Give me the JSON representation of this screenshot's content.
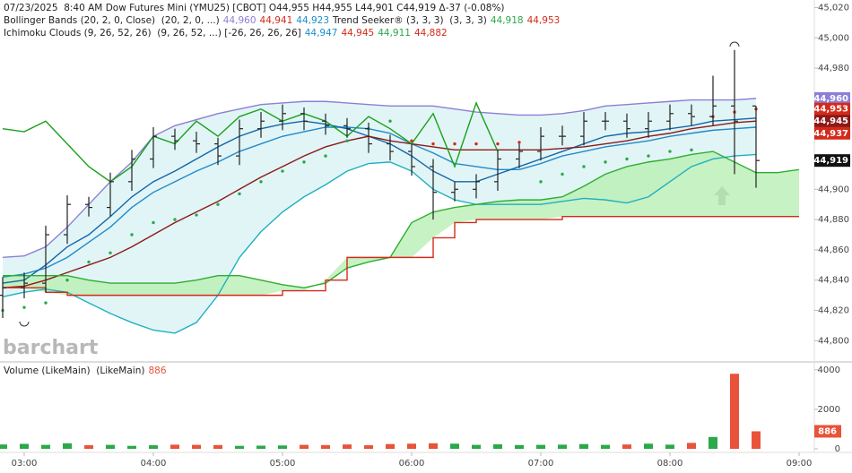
{
  "chart_data": [
    {
      "type": "ohlc",
      "categories": [
        null,
        "03:00",
        null,
        null,
        null,
        null,
        null,
        "04:00",
        null,
        null,
        null,
        null,
        null,
        "05:00",
        null,
        null,
        null,
        null,
        null,
        "06:00",
        null,
        null,
        null,
        null,
        null,
        "07:00",
        null,
        null,
        null,
        null,
        null,
        "08:00",
        null,
        null,
        null,
        null,
        null,
        "09:00"
      ],
      "open": [
        44830,
        44835,
        44838,
        44870,
        44890,
        44888,
        44905,
        44920,
        44935,
        44932,
        44930,
        44922,
        44940,
        44945,
        44950,
        44945,
        44942,
        44940,
        44930,
        44925,
        44915,
        44898,
        44900,
        44905,
        44920,
        44925,
        44935,
        44935,
        44945,
        44945,
        44940,
        44945,
        44950,
        44948,
        44955,
        44955,
        null,
        null
      ],
      "high": [
        44842,
        44845,
        44876,
        44896,
        44895,
        44911,
        44926,
        44941,
        44940,
        44938,
        44934,
        44946,
        44951,
        44956,
        44954,
        44950,
        44947,
        44944,
        44936,
        44930,
        44920,
        44905,
        44910,
        44926,
        44930,
        44941,
        44942,
        44951,
        44951,
        44950,
        44951,
        44956,
        44956,
        44975,
        44992,
        44955,
        null,
        null
      ],
      "low": [
        44815,
        44828,
        44832,
        44864,
        44882,
        44882,
        44899,
        44914,
        44926,
        44924,
        44916,
        44916,
        44934,
        44939,
        44939,
        44936,
        44934,
        44924,
        44919,
        44909,
        44880,
        44892,
        44894,
        44899,
        44914,
        44919,
        44929,
        44929,
        44939,
        44934,
        44934,
        44939,
        44942,
        44942,
        44910,
        44901,
        null,
        null
      ],
      "close": [
        44835,
        44838,
        44870,
        44890,
        44888,
        44905,
        44920,
        44935,
        44932,
        44930,
        44922,
        44940,
        44945,
        44950,
        44945,
        44942,
        44940,
        44930,
        44925,
        44915,
        44898,
        44900,
        44905,
        44920,
        44925,
        44935,
        44935,
        44945,
        44945,
        44940,
        44945,
        44950,
        44948,
        44955,
        44945,
        44919,
        null,
        null
      ],
      "color": "#222222",
      "series": [
        {
          "style": "line",
          "color": "#8c7fd6",
          "values": [
            44855,
            44856,
            44862,
            44875,
            44890,
            44905,
            44918,
            44935,
            44942,
            44946,
            44950,
            44953,
            44956,
            44957,
            44958,
            44958,
            44957,
            44956,
            44955,
            44955,
            44955,
            44953,
            44951,
            44950,
            44949,
            44949,
            44950,
            44952,
            44955,
            44956,
            44957,
            44958,
            44959,
            44959,
            44959,
            44960,
            null,
            null
          ]
        },
        {
          "style": "line",
          "color": "#2389c9",
          "values": [
            44842,
            44844,
            44848,
            44855,
            44865,
            44875,
            44888,
            44898,
            44905,
            44912,
            44918,
            44925,
            44930,
            44935,
            44938,
            44941,
            44941,
            44940,
            44937,
            44930,
            44924,
            44917,
            44915,
            44913,
            44913,
            44917,
            44922,
            44925,
            44928,
            44930,
            44932,
            44935,
            44937,
            44939,
            44940,
            44941,
            null,
            null
          ]
        },
        {
          "style": "line",
          "color": "#1fb0c0",
          "values": [
            44829,
            44832,
            44834,
            44832,
            44825,
            44818,
            44812,
            44807,
            44805,
            44812,
            44830,
            44855,
            44872,
            44885,
            44895,
            44903,
            44912,
            44917,
            44918,
            44912,
            44900,
            44893,
            44890,
            44890,
            44890,
            44890,
            44892,
            44894,
            44893,
            44891,
            44895,
            44905,
            44915,
            44920,
            44922,
            44923,
            null,
            null
          ]
        },
        {
          "style": "line",
          "color": "#1565a8",
          "values": [
            44838,
            44840,
            44850,
            44862,
            44870,
            44882,
            44895,
            44905,
            44912,
            44920,
            44928,
            44935,
            44940,
            44943,
            44945,
            44943,
            44940,
            44935,
            44930,
            44922,
            44912,
            44905,
            44905,
            44910,
            44915,
            44920,
            44925,
            44930,
            44935,
            44937,
            44938,
            44940,
            44942,
            44945,
            44946,
            44947,
            null,
            null
          ]
        },
        {
          "style": "line",
          "color": "#8b1a1a",
          "values": [
            44835,
            44836,
            44840,
            44845,
            44850,
            44855,
            44862,
            44870,
            44878,
            44885,
            44892,
            44900,
            44908,
            44915,
            44922,
            44928,
            44932,
            44935,
            44932,
            44930,
            44928,
            44926,
            44926,
            44926,
            44926,
            44926,
            44927,
            44928,
            44930,
            44932,
            44935,
            44937,
            44940,
            44942,
            44944,
            44945,
            null,
            null
          ]
        },
        {
          "style": "line",
          "color": "#2fae2f",
          "values": [
            44843,
            44843,
            44843,
            44843,
            44840,
            44838,
            44838,
            44838,
            44838,
            44840,
            44843,
            44843,
            44840,
            44837,
            44835,
            44838,
            44848,
            44852,
            44855,
            44878,
            44885,
            44888,
            44890,
            44892,
            44893,
            44893,
            44895,
            44902,
            44910,
            44915,
            44918,
            44920,
            44923,
            44925,
            44918,
            44911,
            44911,
            44913
          ]
        },
        {
          "style": "step",
          "color": "#d42a1a",
          "values": [
            44835,
            44835,
            44832,
            44830,
            44830,
            44830,
            44830,
            44830,
            44830,
            44830,
            44830,
            44830,
            44830,
            44833,
            44833,
            44840,
            44855,
            44855,
            44855,
            44855,
            44868,
            44878,
            44880,
            44880,
            44880,
            44880,
            44882,
            44882,
            44882,
            44882,
            44882,
            44882,
            44882,
            44882,
            44882,
            44882,
            44882,
            44882
          ]
        },
        {
          "style": "line",
          "color": "#1aa01a",
          "values": [
            44940,
            44938,
            44945,
            44930,
            44915,
            44905,
            44915,
            44935,
            44930,
            44945,
            44935,
            44948,
            44953,
            44945,
            44950,
            44945,
            44935,
            44948,
            44940,
            44930,
            44950,
            44915,
            44957,
            44925,
            null,
            null,
            null,
            null,
            null,
            null,
            null,
            null,
            null,
            null,
            null,
            null,
            null,
            null
          ]
        },
        {
          "style": "dots",
          "color": "#2aa84a",
          "values": [
            44820,
            44822,
            44825,
            44840,
            44852,
            44858,
            44870,
            44878,
            44880,
            44883,
            44890,
            44897,
            44905,
            44912,
            44918,
            44922,
            44932,
            44940,
            44945,
            null,
            null,
            null,
            null,
            null,
            null,
            44905,
            44910,
            44915,
            44918,
            44920,
            44922,
            44925,
            44926,
            null,
            null,
            null,
            null,
            null
          ]
        },
        {
          "style": "dots",
          "color": "#d42a1a",
          "values": [
            null,
            null,
            null,
            null,
            null,
            null,
            null,
            null,
            null,
            null,
            null,
            null,
            null,
            null,
            null,
            null,
            null,
            null,
            null,
            44932,
            44930,
            44930,
            44930,
            44930,
            44931,
            null,
            null,
            null,
            null,
            null,
            null,
            null,
            null,
            44948,
            44951,
            44953,
            null,
            null
          ]
        }
      ],
      "bands": [
        {
          "between": [
            0,
            2
          ],
          "color": "#daf2f4"
        },
        {
          "between": [
            5,
            6
          ],
          "color": "#b9efb4"
        }
      ],
      "ylim": [
        44786,
        45025
      ],
      "yticks": [
        {
          "value": 44800,
          "label": "44,800"
        },
        {
          "value": 44820,
          "label": "44,820"
        },
        {
          "value": 44840,
          "label": "44,840"
        },
        {
          "value": 44860,
          "label": "44,860"
        },
        {
          "value": 44880,
          "label": "44,880"
        },
        {
          "value": 44900,
          "label": "44,900"
        },
        {
          "value": 44920,
          "label": "44,920"
        },
        {
          "value": 44940,
          "label": "44,940"
        },
        {
          "value": 44960,
          "label": "44,960"
        },
        {
          "value": 44980,
          "label": "44,980"
        },
        {
          "value": 45000,
          "label": "45,000"
        },
        {
          "value": 45020,
          "label": "45,020"
        }
      ],
      "price_tags": [
        {
          "value": 44960,
          "label": "44,960",
          "color": "#8c7fd6"
        },
        {
          "value": 44953,
          "label": "44,953",
          "color": "#d42a1a"
        },
        {
          "value": 44945,
          "label": "44,945",
          "color": "#8b1a1a"
        },
        {
          "value": 44937,
          "label": "44,937",
          "color": "#d42a1a"
        },
        {
          "value": 44919,
          "label": "44,919",
          "color": "#111111"
        }
      ],
      "legend": [
        {
          "items": [
            {
              "text": "07/23/2025  8:40 AM Dow Futures Mini (YMU25) [CBOT] O44,955 H44,955 L44,901 C44,919 Δ-37 (-0.08%)",
              "color": "#222222"
            }
          ]
        },
        {
          "items": [
            {
              "text": "Bollinger Bands (20, 2, 0, Close)  (20, 2, 0, ...)",
              "color": "#222222"
            },
            {
              "text": "44,960",
              "color": "#8c7fd6"
            },
            {
              "text": "44,941",
              "color": "#d42a1a"
            },
            {
              "text": "44,923",
              "color": "#1a8fc9"
            },
            {
              "text": "Trend Seeker® (3, 3, 3)  (3, 3, 3)",
              "color": "#222222"
            },
            {
              "text": "44,918",
              "color": "#2aa84a"
            },
            {
              "text": "44,953",
              "color": "#d42a1a"
            }
          ]
        },
        {
          "items": [
            {
              "text": "Ichimoku Clouds (9, 26, 52, 26)  (9, 26, 52, ...) [-26, 26, 26, 26]",
              "color": "#222222"
            },
            {
              "text": "44,947",
              "color": "#1a8fc9"
            },
            {
              "text": "44,945",
              "color": "#d42a1a"
            },
            {
              "text": "44,911",
              "color": "#2aa84a"
            },
            {
              "text": "44,882",
              "color": "#d42a1a"
            }
          ]
        }
      ],
      "watermark": "barchart"
    },
    {
      "type": "bar",
      "title": "Volume (LikeMain)  (LikeMain)",
      "values": [
        220,
        250,
        200,
        280,
        180,
        200,
        150,
        180,
        210,
        200,
        190,
        150,
        160,
        170,
        200,
        190,
        220,
        180,
        240,
        260,
        280,
        260,
        200,
        230,
        190,
        200,
        210,
        240,
        200,
        220,
        260,
        210,
        300,
        600,
        3800,
        886,
        null,
        null
      ],
      "colors": {
        "up": "#2aa84a",
        "down": "#e8533a"
      },
      "ylim": [
        0,
        4400
      ],
      "yticks": [
        0,
        2000,
        4000
      ]
    }
  ]
}
